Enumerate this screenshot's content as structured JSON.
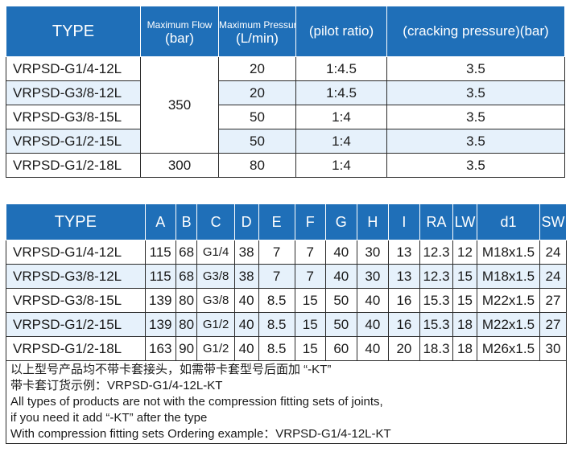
{
  "table1": {
    "headers": {
      "type": "TYPE",
      "flow_title": "Maximum Flow",
      "flow_unit": "(bar)",
      "pressure_title": "Maximum Pressure",
      "pressure_unit": "(L/min)",
      "pilot_ratio": "(pilot ratio)",
      "cracking": "(cracking pressure)(bar)"
    },
    "rows": [
      {
        "model": "VRPSD-G1/4-12L",
        "pressure": "20",
        "ratio": "1:4.5",
        "cracking": "3.5"
      },
      {
        "model": "VRPSD-G3/8-12L",
        "pressure": "20",
        "ratio": "1:4.5",
        "cracking": "3.5"
      },
      {
        "model": "VRPSD-G3/8-15L",
        "pressure": "50",
        "ratio": "1:4",
        "cracking": "3.5"
      },
      {
        "model": "VRPSD-G1/2-15L",
        "pressure": "50",
        "ratio": "1:4",
        "cracking": "3.5"
      },
      {
        "model": "VRPSD-G1/2-18L",
        "pressure": "80",
        "ratio": "1:4",
        "cracking": "3.5"
      }
    ],
    "flow_group_1": "350",
    "flow_group_2": "300"
  },
  "table2": {
    "headers": [
      "TYPE",
      "A",
      "B",
      "C",
      "D",
      "E",
      "F",
      "G",
      "H",
      "I",
      "RA",
      "LW",
      "d1",
      "SW"
    ],
    "rows": [
      [
        "VRPSD-G1/4-12L",
        "115",
        "68",
        "G1/4",
        "38",
        "7",
        "7",
        "40",
        "30",
        "13",
        "12.3",
        "12",
        "M18x1.5",
        "24"
      ],
      [
        "VRPSD-G3/8-12L",
        "115",
        "68",
        "G3/8",
        "38",
        "7",
        "7",
        "40",
        "30",
        "13",
        "12.3",
        "15",
        "M18x1.5",
        "24"
      ],
      [
        "VRPSD-G3/8-15L",
        "139",
        "80",
        "G3/8",
        "40",
        "8.5",
        "15",
        "50",
        "40",
        "16",
        "15.3",
        "15",
        "M22x1.5",
        "27"
      ],
      [
        "VRPSD-G1/2-15L",
        "139",
        "80",
        "G1/2",
        "40",
        "8.5",
        "15",
        "50",
        "40",
        "16",
        "15.3",
        "18",
        "M22x1.5",
        "27"
      ],
      [
        "VRPSD-G1/2-18L",
        "163",
        "90",
        "G1/2",
        "40",
        "8.5",
        "15",
        "60",
        "40",
        "20",
        "18.3",
        "18",
        "M26x1.5",
        "30"
      ]
    ],
    "notes": [
      "以上型号产品均不带卡套接头，如需带卡套型号后面加 “-KT”",
      "带卡套订货示例：VRPSD-G1/4-12L-KT",
      "All types of products are not with the compression fitting sets of joints,",
      "if you need it add  “-KT” after the type",
      "With compression fitting sets Ordering example：VRPSD-G1/4-12L-KT"
    ]
  },
  "colors": {
    "header_bg": "#1f6fb8",
    "alt_row_bg": "#e6f1fb"
  }
}
